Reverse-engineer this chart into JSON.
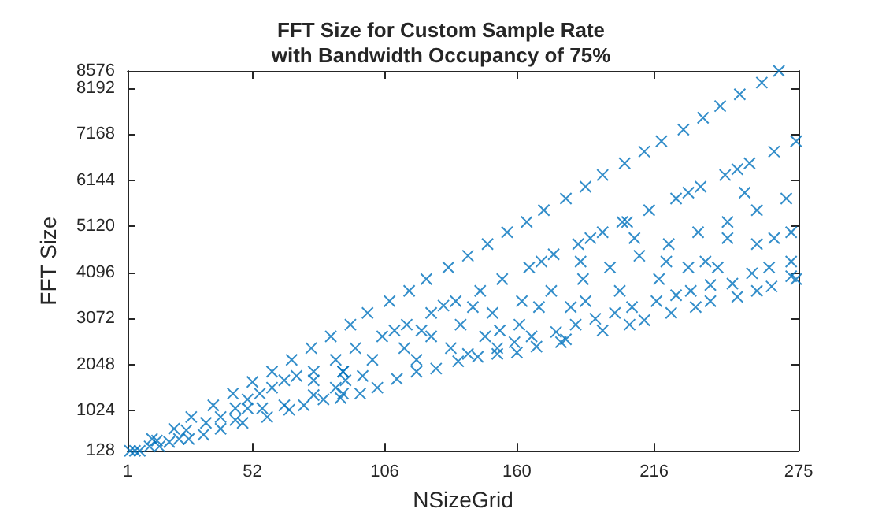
{
  "chart_data": {
    "type": "scatter",
    "title": "FFT Size for Custom Sample Rate\nwith Bandwidth Occupancy of 75%",
    "xlabel": "NSizeGrid",
    "ylabel": "FFT Size",
    "xlim": [
      1,
      275
    ],
    "xticks": [
      1,
      52,
      106,
      160,
      216,
      275
    ],
    "ylim": [
      128,
      8576
    ],
    "yticks": [
      128,
      1024,
      2048,
      3072,
      4096,
      5120,
      6144,
      7168,
      8192,
      8576
    ],
    "marker": "cross",
    "grid": false,
    "series": [
      {
        "color": "#0072bd",
        "x": [
          267,
          260,
          251,
          243,
          236,
          228,
          219,
          212,
          204,
          195,
          188,
          180,
          171,
          164,
          156,
          148,
          140,
          132,
          123,
          116,
          108,
          99,
          92,
          84,
          76,
          68,
          60,
          52,
          44,
          36,
          27,
          20,
          11,
          4,
          274,
          265,
          255,
          250,
          245,
          235,
          230,
          225,
          214,
          205,
          195,
          190,
          185,
          175,
          170,
          165,
          135,
          130,
          125,
          115,
          110,
          105,
          145,
          154,
          162,
          174,
          169,
          150,
          142,
          137,
          161,
          153,
          147,
          121,
          125,
          114,
          119,
          133,
          140,
          152,
          159,
          166,
          176,
          94,
          101,
          97,
          89,
          88,
          96,
          103,
          111,
          119,
          127,
          136,
          144,
          152,
          160,
          168,
          178,
          180,
          195,
          206,
          212,
          223,
          233,
          239,
          250,
          258,
          264,
          274,
          182,
          188,
          184,
          192,
          200,
          207,
          217,
          225,
          231,
          239,
          248,
          187,
          202,
          218,
          198,
          186,
          210,
          221,
          230,
          237,
          242,
          256,
          263,
          272,
          272,
          208,
          222,
          234,
          246,
          258,
          265,
          272,
          203,
          246,
          253,
          258,
          270,
          2,
          6,
          10,
          14,
          18,
          22,
          26,
          32,
          39,
          48,
          58,
          67,
          73,
          81,
          89,
          33,
          39,
          45,
          50,
          55,
          60,
          65,
          70,
          77,
          77,
          65,
          56,
          86,
          90,
          86,
          89,
          77,
          50,
          45,
          25,
          13
        ],
        "values": [
          8576,
          8316,
          8055,
          7794,
          7533,
          7272,
          7011,
          6782,
          6521,
          6261,
          6000,
          5739,
          5478,
          5217,
          4988,
          4727,
          4466,
          4206,
          3945,
          3684,
          3455,
          3194,
          2933,
          2672,
          2411,
          2150,
          1889,
          1661,
          1400,
          1139,
          878,
          617,
          389,
          128,
          7011,
          6782,
          6521,
          6391,
          6261,
          6000,
          5870,
          5739,
          5478,
          5217,
          4988,
          4858,
          4727,
          4499,
          4336,
          4206,
          3455,
          3357,
          3194,
          2933,
          2803,
          2672,
          3684,
          3945,
          3455,
          3684,
          3325,
          3194,
          3325,
          2933,
          2933,
          2803,
          2672,
          2803,
          2672,
          2411,
          2150,
          2411,
          2281,
          2411,
          2542,
          2672,
          2770,
          2411,
          2150,
          1792,
          1889,
          1302,
          1400,
          1531,
          1726,
          1889,
          1955,
          2118,
          2216,
          2281,
          2314,
          2444,
          2542,
          2607,
          2803,
          2933,
          3031,
          3194,
          3325,
          3455,
          3553,
          3684,
          3782,
          3945,
          3325,
          3455,
          2933,
          3064,
          3194,
          3325,
          3455,
          3586,
          3684,
          3814,
          3847,
          3945,
          3684,
          3945,
          4206,
          4336,
          4466,
          4336,
          4206,
          4336,
          4206,
          4075,
          4206,
          4336,
          4010,
          4858,
          4727,
          4988,
          4858,
          4727,
          4858,
          4988,
          5217,
          5217,
          5870,
          5478,
          5739,
          128,
          128,
          226,
          226,
          324,
          389,
          389,
          487,
          617,
          748,
          878,
          1041,
          1139,
          1270,
          1400,
          748,
          878,
          1074,
          1270,
          1400,
          1531,
          1694,
          1792,
          1694,
          1367,
          1139,
          1074,
          1531,
          1694,
          2150,
          1889,
          1889,
          1074,
          813,
          585,
          356
        ]
      }
    ]
  }
}
